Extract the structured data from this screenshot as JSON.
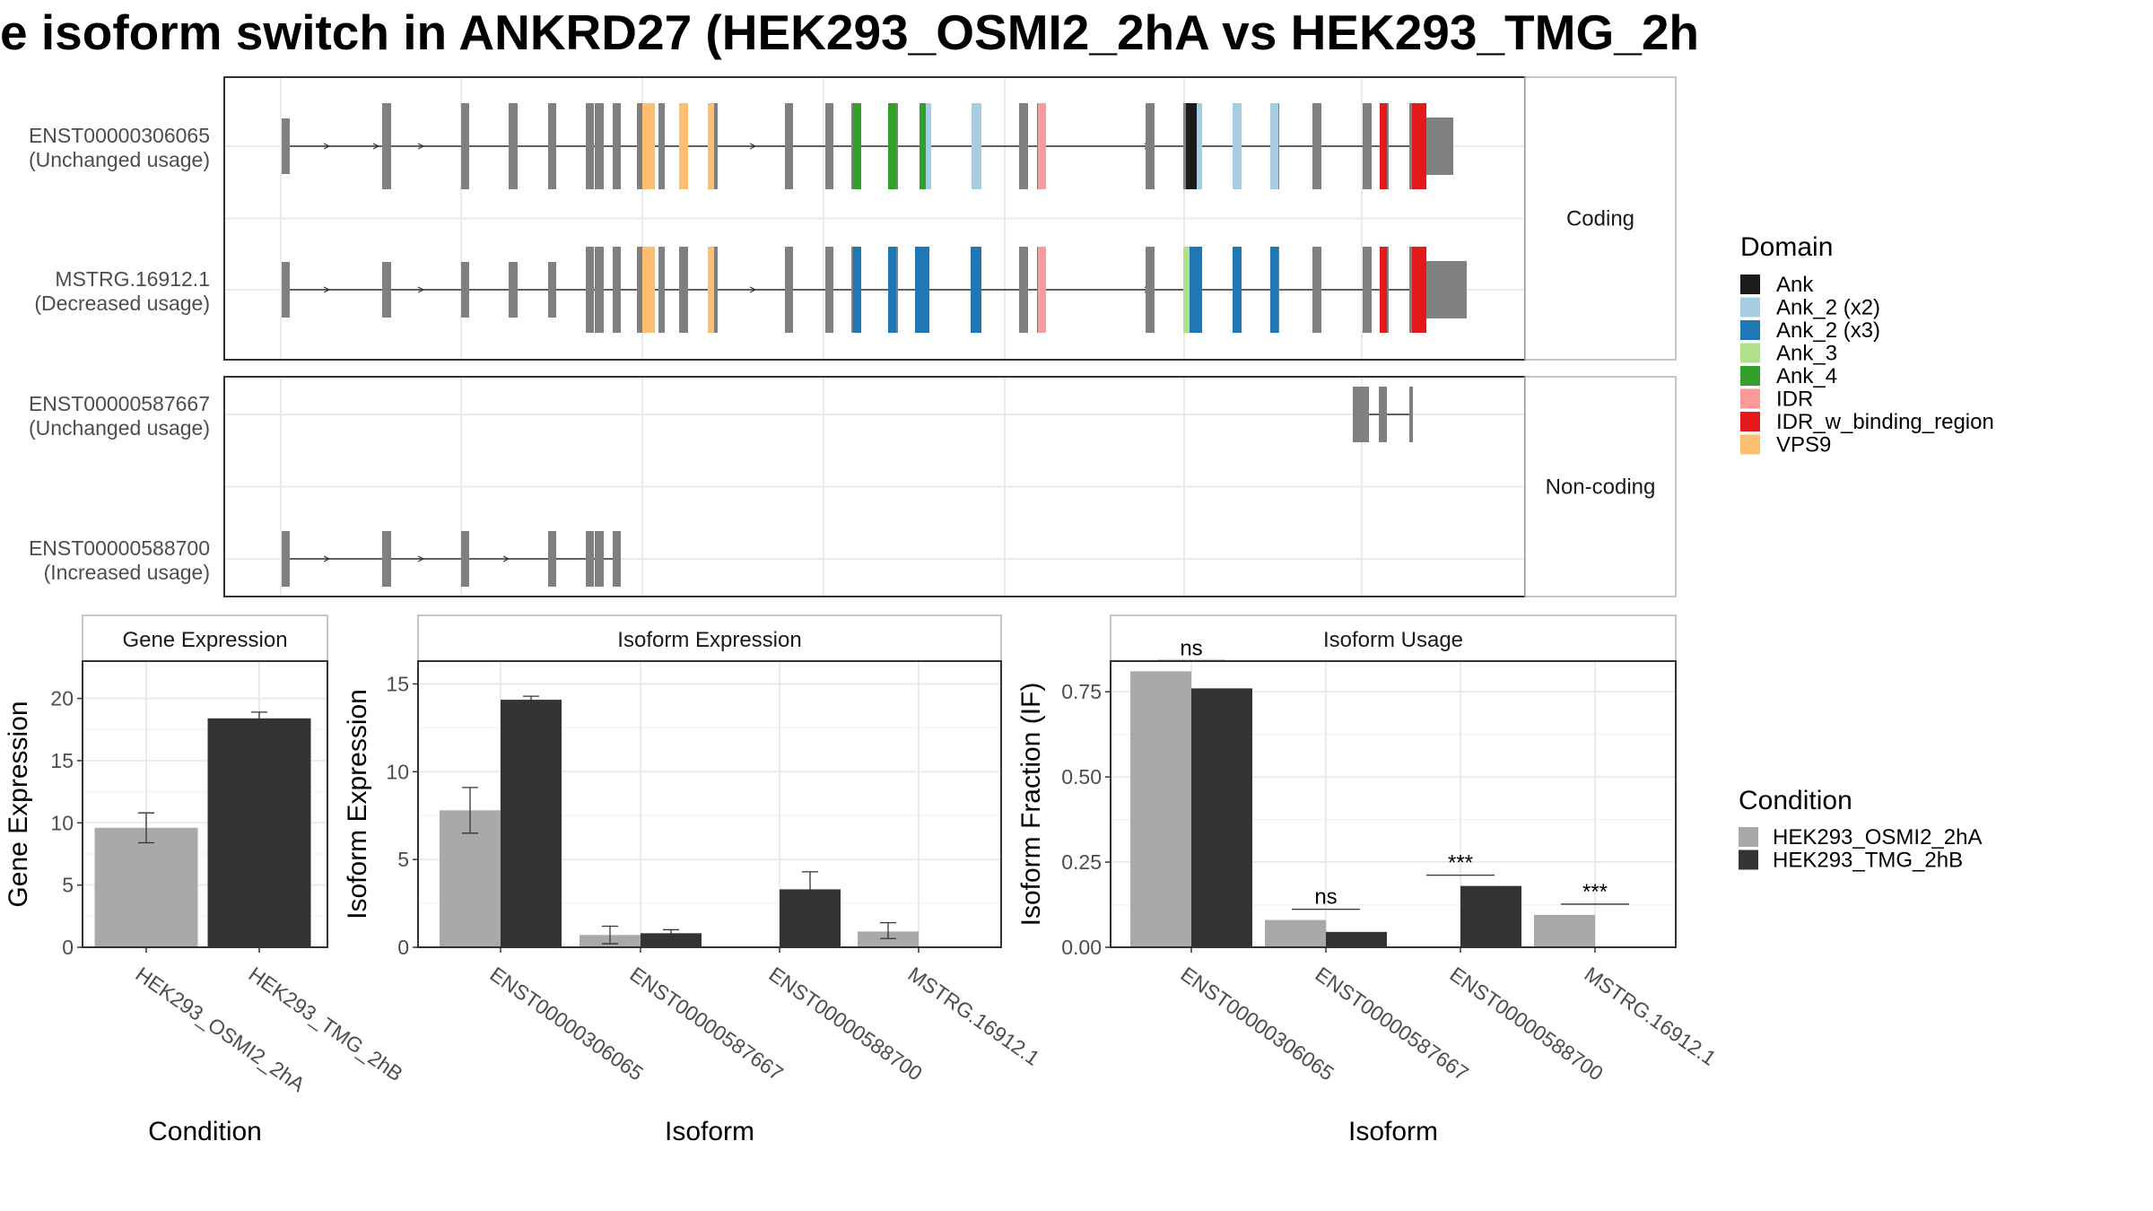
{
  "title": "e isoform switch in ANKRD27 (HEK293_OSMI2_2hA vs HEK293_TMG_2h",
  "colors": {
    "Ank": "#1b1b1b",
    "Ank_2 (x2)": "#a6cee3",
    "Ank_2 (x3)": "#1f78b4",
    "Ank_3": "#b2df8a",
    "Ank_4": "#33a02c",
    "IDR": "#fb9a99",
    "IDR_w_binding_region": "#e31a1c",
    "VPS9": "#fdbf6f",
    "exon": "#808080",
    "HEK293_OSMI2_2hA": "#a9a9a9",
    "HEK293_TMG_2hB": "#333333",
    "panel_border": "#333333",
    "grid": "#ebebeb",
    "strip_border": "#b3b3b3"
  },
  "transcript_panel": {
    "facets": [
      {
        "label": "Coding",
        "transcripts": [
          {
            "id": "ENST00000306065",
            "usage": "(Unchanged usage)"
          },
          {
            "id": "MSTRG.16912.1",
            "usage": "(Decreased usage)"
          }
        ]
      },
      {
        "label": "Non-coding",
        "transcripts": [
          {
            "id": "ENST00000587667",
            "usage": "(Unchanged usage)"
          },
          {
            "id": "ENST00000588700",
            "usage": "(Increased usage)"
          }
        ]
      }
    ]
  },
  "legend_domain": {
    "title": "Domain",
    "items": [
      "Ank",
      "Ank_2 (x2)",
      "Ank_2 (x3)",
      "Ank_3",
      "Ank_4",
      "IDR",
      "IDR_w_binding_region",
      "VPS9"
    ]
  },
  "legend_condition": {
    "title": "Condition",
    "items": [
      "HEK293_OSMI2_2hA",
      "HEK293_TMG_2hB"
    ]
  },
  "chart_data": [
    {
      "type": "bar",
      "title": "Gene Expression",
      "xlabel": "Condition",
      "ylabel": "Gene Expression",
      "ylim": [
        0,
        23
      ],
      "yticks": [
        0,
        5,
        10,
        15,
        20
      ],
      "categories": [
        "HEK293_OSMI2_2hA",
        "HEK293_TMG_2hB"
      ],
      "series": [
        {
          "name": "HEK293_OSMI2_2hA",
          "values": [
            9.6,
            null
          ],
          "errors": [
            [
              8.4,
              10.8
            ],
            null
          ]
        },
        {
          "name": "HEK293_TMG_2hB",
          "values": [
            null,
            18.4
          ],
          "errors": [
            null,
            [
              17.9,
              18.9
            ]
          ]
        }
      ]
    },
    {
      "type": "bar",
      "title": "Isoform Expression",
      "xlabel": "Isoform",
      "ylabel": "Isoform Expression",
      "ylim": [
        0,
        16.3
      ],
      "yticks": [
        0,
        5,
        10,
        15
      ],
      "categories": [
        "ENST00000306065",
        "ENST00000587667",
        "ENST00000588700",
        "MSTRG.16912.1"
      ],
      "series": [
        {
          "name": "HEK293_OSMI2_2hA",
          "values": [
            7.8,
            0.7,
            0.0,
            0.9
          ],
          "errors": [
            [
              6.5,
              9.1
            ],
            [
              0.2,
              1.2
            ],
            [
              0.0,
              0.0
            ],
            [
              0.5,
              1.4
            ]
          ]
        },
        {
          "name": "HEK293_TMG_2hB",
          "values": [
            14.1,
            0.8,
            3.3,
            0.0
          ],
          "errors": [
            [
              13.9,
              14.3
            ],
            [
              0.6,
              1.0
            ],
            [
              2.4,
              4.3
            ],
            [
              0.0,
              0.0
            ]
          ]
        }
      ]
    },
    {
      "type": "bar",
      "title": "Isoform Usage",
      "xlabel": "Isoform",
      "ylabel": "Isoform Fraction (IF)",
      "ylim": [
        0,
        0.84
      ],
      "yticks": [
        0,
        0.25,
        0.5,
        0.75
      ],
      "ytick_labels": [
        "0.00",
        "0.25",
        "0.50",
        "0.75"
      ],
      "categories": [
        "ENST00000306065",
        "ENST00000587667",
        "ENST00000588700",
        "MSTRG.16912.1"
      ],
      "series": [
        {
          "name": "HEK293_OSMI2_2hA",
          "values": [
            0.81,
            0.08,
            0.0,
            0.095
          ]
        },
        {
          "name": "HEK293_TMG_2hB",
          "values": [
            0.76,
            0.045,
            0.18,
            0.0
          ]
        }
      ],
      "significance": [
        "ns",
        "ns",
        "***",
        "***"
      ]
    }
  ]
}
